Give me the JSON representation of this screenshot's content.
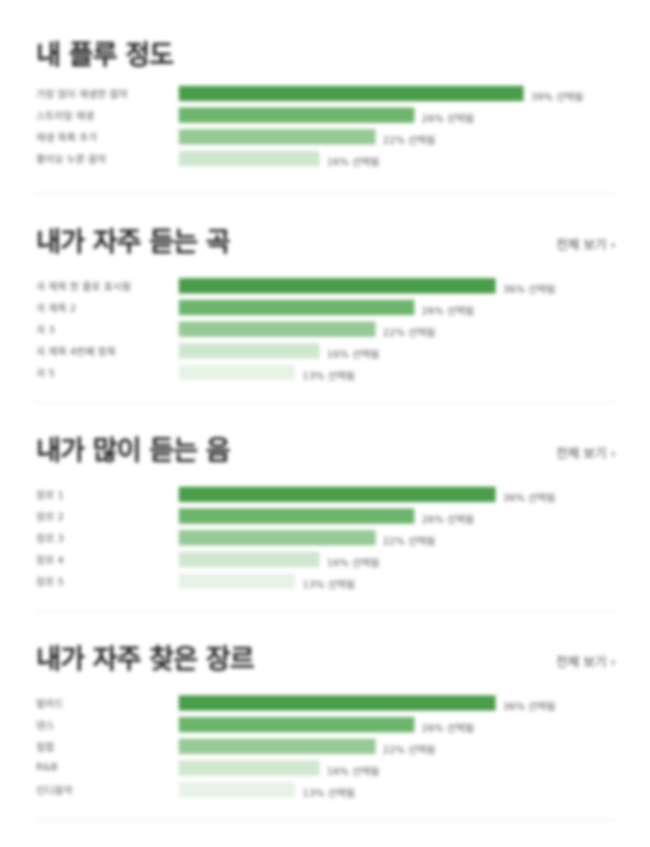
{
  "sections": [
    {
      "title": "내 플루 정도",
      "see_all": "",
      "rows": [
        {
          "label": "가장 많이 재생한 음악",
          "value": "39% 선택됨",
          "share": 0.98,
          "color": "#4a9d4a"
        },
        {
          "label": "스트리밍 재생",
          "value": "26% 선택됨",
          "share": 0.67,
          "color": "#6db46d"
        },
        {
          "label": "재생 목록 추가",
          "value": "22% 선택됨",
          "share": 0.56,
          "color": "#96c996"
        },
        {
          "label": "좋아요 누른 음악",
          "value": "16% 선택됨",
          "share": 0.4,
          "color": "#cfe6cf"
        }
      ]
    },
    {
      "title": "내가 자주 듣는 곡",
      "see_all": "전체 보기 ›",
      "rows": [
        {
          "label": "곡 제목 한 줄로 표시됨",
          "value": "36% 선택됨",
          "share": 0.9,
          "color": "#4a9d4a"
        },
        {
          "label": "곡 제목 2",
          "value": "26% 선택됨",
          "share": 0.67,
          "color": "#6db46d"
        },
        {
          "label": "곡 3",
          "value": "22% 선택됨",
          "share": 0.56,
          "color": "#96c996"
        },
        {
          "label": "곡 제목 4번째 항목",
          "value": "16% 선택됨",
          "share": 0.4,
          "color": "#cfe6cf"
        },
        {
          "label": "곡 5",
          "value": "13% 선택됨",
          "share": 0.33,
          "color": "#e8f3e8"
        }
      ]
    },
    {
      "title": "내가 많이 듣는 음",
      "see_all": "전체 보기 ›",
      "rows": [
        {
          "label": "장르 1",
          "value": "36% 선택됨",
          "share": 0.9,
          "color": "#4a9d4a"
        },
        {
          "label": "장르 2",
          "value": "26% 선택됨",
          "share": 0.67,
          "color": "#6db46d"
        },
        {
          "label": "장르 3",
          "value": "22% 선택됨",
          "share": 0.56,
          "color": "#96c996"
        },
        {
          "label": "장르 4",
          "value": "16% 선택됨",
          "share": 0.4,
          "color": "#cfe6cf"
        },
        {
          "label": "장르 5",
          "value": "13% 선택됨",
          "share": 0.33,
          "color": "#e8f3e8"
        }
      ]
    },
    {
      "title": "내가 자주 찾은 장르",
      "see_all": "전체 보기 ›",
      "rows": [
        {
          "label": "발라드",
          "value": "36% 선택됨",
          "share": 0.9,
          "color": "#4a9d4a"
        },
        {
          "label": "댄스",
          "value": "26% 선택됨",
          "share": 0.67,
          "color": "#6db46d"
        },
        {
          "label": "힙합",
          "value": "22% 선택됨",
          "share": 0.56,
          "color": "#96c996"
        },
        {
          "label": "R&B",
          "value": "16% 선택됨",
          "share": 0.4,
          "color": "#cfe6cf"
        },
        {
          "label": "인디음악",
          "value": "13% 선택됨",
          "share": 0.33,
          "color": "#e8f3e8"
        }
      ]
    }
  ]
}
